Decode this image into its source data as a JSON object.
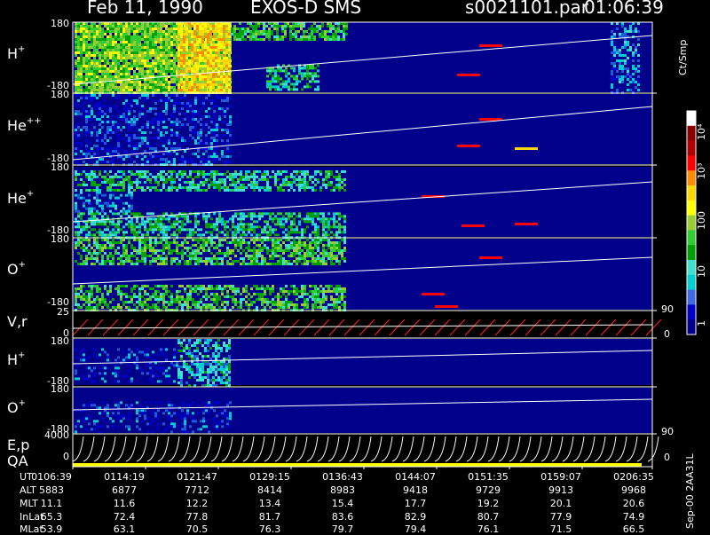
{
  "header": {
    "date": "Feb 11, 1990",
    "instrument": "EXOS-D SMS",
    "file": "s0021101.par",
    "time": "01:06:39"
  },
  "panels": [
    {
      "id": "h_plus",
      "species": "H",
      "charge": "+",
      "tick_top": "180",
      "tick_bottom": "-180"
    },
    {
      "id": "he_pp",
      "species": "He",
      "charge": "++",
      "tick_top": "180",
      "tick_bottom": "-180"
    },
    {
      "id": "he_plus",
      "species": "He",
      "charge": "+",
      "tick_top": "180",
      "tick_bottom": "-180"
    },
    {
      "id": "o_plus",
      "species": "O",
      "charge": "+",
      "tick_top": "180",
      "tick_bottom": "-180"
    },
    {
      "id": "vr",
      "species": "V,r",
      "charge": "",
      "tick_top": "25",
      "tick_bottom": "0",
      "right_top": "90",
      "right_bottom": "0"
    },
    {
      "id": "h_plus_2",
      "species": "H",
      "charge": "+",
      "tick_top": "180",
      "tick_bottom": "-180"
    },
    {
      "id": "o_plus_2",
      "species": "O",
      "charge": "+",
      "tick_top": "180",
      "tick_bottom": "-180"
    },
    {
      "id": "ep",
      "species": "E,p",
      "charge": "",
      "tick_top": "4000",
      "tick_bottom": "0",
      "right_top": "90",
      "right_bottom": "0"
    }
  ],
  "qa_label": "QA",
  "colorbar": {
    "units": "Ct/Smp",
    "ticks": [
      "10⁴",
      "10³",
      "100",
      "10",
      "1"
    ],
    "colors": [
      "#ffffff",
      "#8b0000",
      "#b00000",
      "#ff0000",
      "#ff8c00",
      "#ffd700",
      "#ffff00",
      "#9acd32",
      "#32cd32",
      "#00a000",
      "#40e0d0",
      "#00ced1",
      "#4169e1",
      "#0000c8",
      "#00008b"
    ]
  },
  "footer": {
    "row_labels": [
      "UT",
      "ALT",
      "MLT",
      "InLat",
      "MLat"
    ],
    "columns": [
      [
        "0106:39",
        "5883",
        "11.1",
        "65.3",
        "53.9"
      ],
      [
        "0114:19",
        "6877",
        "11.6",
        "72.4",
        "63.1"
      ],
      [
        "0121:47",
        "7712",
        "12.2",
        "77.8",
        "70.5"
      ],
      [
        "0129:15",
        "8414",
        "13.4",
        "81.7",
        "76.3"
      ],
      [
        "0136:43",
        "8983",
        "15.4",
        "83.6",
        "79.7"
      ],
      [
        "0144:07",
        "9418",
        "17.7",
        "82.9",
        "79.4"
      ],
      [
        "0151:35",
        "9729",
        "19.2",
        "80.7",
        "76.1"
      ],
      [
        "0159:07",
        "9913",
        "20.1",
        "77.9",
        "71.5"
      ],
      [
        "0206:35",
        "9968",
        "20.6",
        "74.9",
        "66.5"
      ]
    ],
    "version": "Sep-00  2AA31L"
  }
}
